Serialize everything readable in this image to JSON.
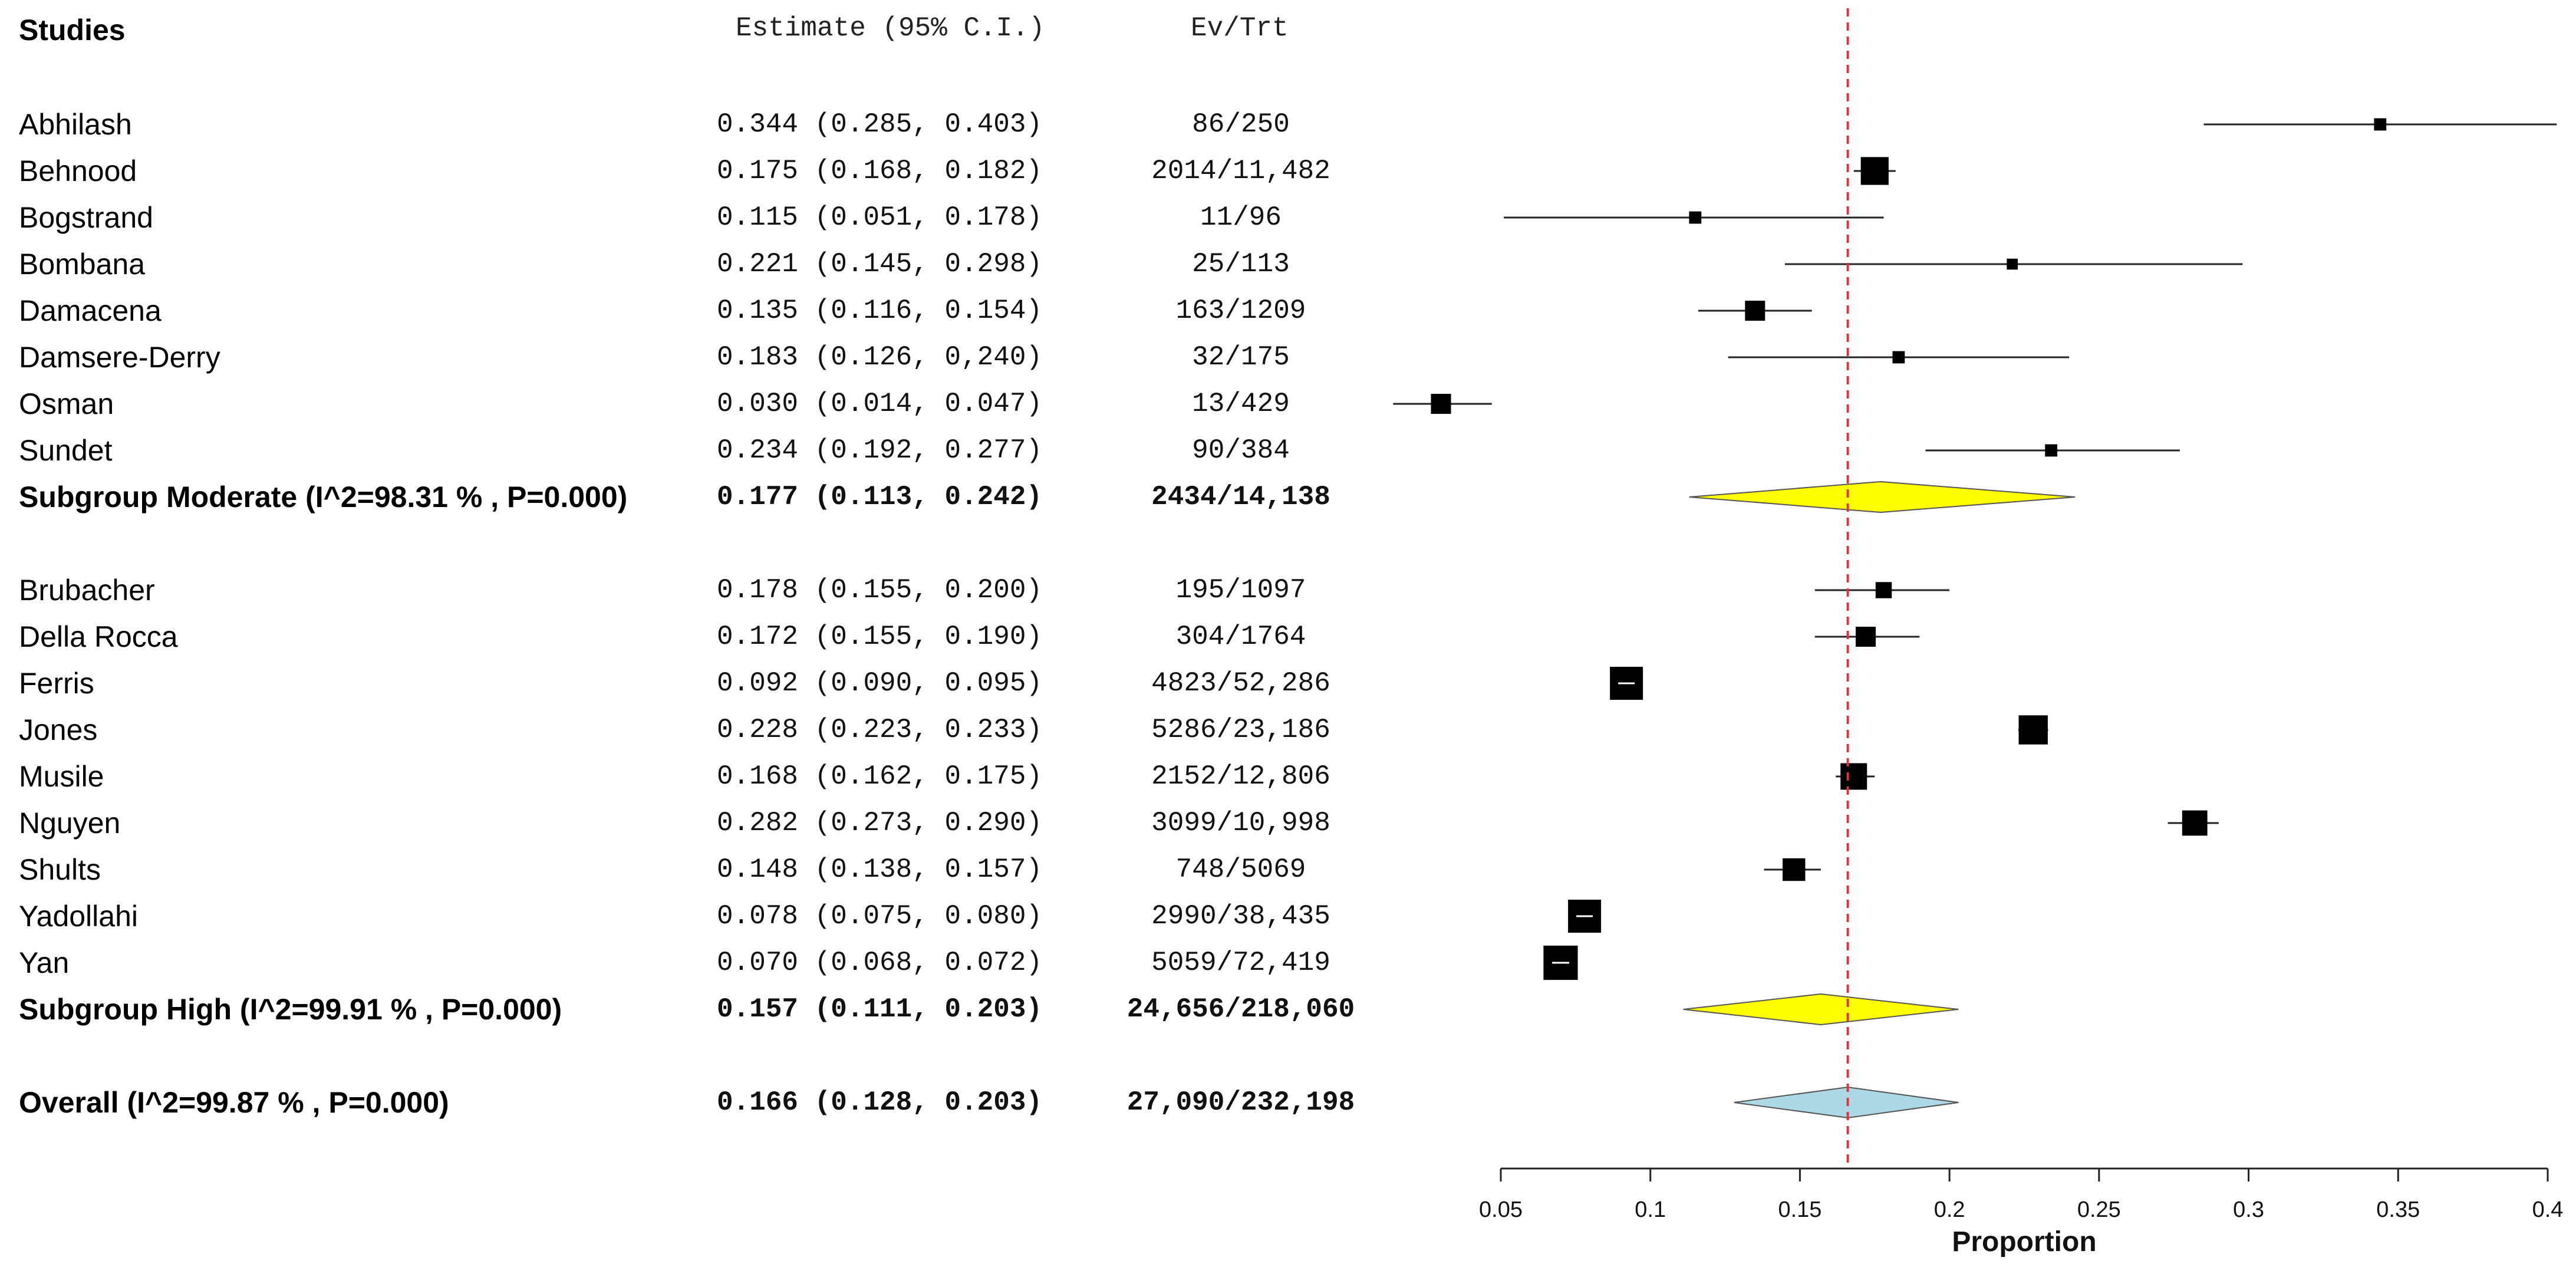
{
  "chart_data": {
    "type": "forest",
    "columns": {
      "studies": "Studies",
      "estimate": "Estimate (95% C.I.)",
      "events": "Ev/Trt"
    },
    "reference_line": 0.166,
    "xlabel": "Proportion",
    "xlim": [
      0.05,
      0.4
    ],
    "xticks": [
      {
        "value": 0.05,
        "label": "0.05"
      },
      {
        "value": 0.1,
        "label": "0.1"
      },
      {
        "value": 0.15,
        "label": "0.15"
      },
      {
        "value": 0.2,
        "label": "0.2"
      },
      {
        "value": 0.25,
        "label": "0.25"
      },
      {
        "value": 0.3,
        "label": "0.3"
      },
      {
        "value": 0.35,
        "label": "0.35"
      },
      {
        "value": 0.4,
        "label": "0.4"
      }
    ],
    "colors": {
      "moderate": "#ffff00",
      "high": "#ffff00",
      "overall": "#add8e6",
      "refline": "#d9363e"
    },
    "rows": [
      {
        "kind": "study",
        "name": "Abhilash",
        "estimate_text": "0.344 (0.285, 0.403)",
        "events": "86/250",
        "est": 0.344,
        "lo": 0.285,
        "hi": 0.403,
        "weight": 0.2
      },
      {
        "kind": "study",
        "name": "Behnood",
        "estimate_text": "0.175 (0.168, 0.182)",
        "events": "2014/11,482",
        "est": 0.175,
        "lo": 0.168,
        "hi": 0.182,
        "weight": 0.8
      },
      {
        "kind": "study",
        "name": "Bogstrand",
        "estimate_text": "0.115 (0.051, 0.178)",
        "events": "11/96",
        "est": 0.115,
        "lo": 0.051,
        "hi": 0.178,
        "weight": 0.2
      },
      {
        "kind": "study",
        "name": "Bombana",
        "estimate_text": "0.221 (0.145, 0.298)",
        "events": "25/113",
        "est": 0.221,
        "lo": 0.145,
        "hi": 0.298,
        "weight": 0.15
      },
      {
        "kind": "study",
        "name": "Damacena",
        "estimate_text": "0.135 (0.116, 0.154)",
        "events": "163/1209",
        "est": 0.135,
        "lo": 0.116,
        "hi": 0.154,
        "weight": 0.5
      },
      {
        "kind": "study",
        "name": "Damsere-Derry",
        "estimate_text": "0.183 (0.126, 0,240)",
        "events": "32/175",
        "est": 0.183,
        "lo": 0.126,
        "hi": 0.24,
        "weight": 0.2
      },
      {
        "kind": "study",
        "name": "Osman",
        "estimate_text": "0.030 (0.014, 0.047)",
        "events": "13/429",
        "est": 0.03,
        "lo": 0.014,
        "hi": 0.047,
        "weight": 0.5
      },
      {
        "kind": "study",
        "name": "Sundet",
        "estimate_text": "0.234 (0.192, 0.277)",
        "events": "90/384",
        "est": 0.234,
        "lo": 0.192,
        "hi": 0.277,
        "weight": 0.2
      },
      {
        "kind": "summary",
        "group": "moderate",
        "name": "Subgroup Moderate (I^2=98.31 % , P=0.000)",
        "estimate_text": "0.177 (0.113, 0.242)",
        "events": "2434/14,138",
        "est": 0.177,
        "lo": 0.113,
        "hi": 0.242
      },
      {
        "kind": "spacer"
      },
      {
        "kind": "study",
        "name": "Brubacher",
        "estimate_text": "0.178 (0.155, 0.200)",
        "events": "195/1097",
        "est": 0.178,
        "lo": 0.155,
        "hi": 0.2,
        "weight": 0.35
      },
      {
        "kind": "study",
        "name": "Della Rocca",
        "estimate_text": "0.172 (0.155, 0.190)",
        "events": "304/1764",
        "est": 0.172,
        "lo": 0.155,
        "hi": 0.19,
        "weight": 0.5
      },
      {
        "kind": "study",
        "name": "Ferris",
        "estimate_text": "0.092 (0.090, 0.095)",
        "events": "4823/52,286",
        "est": 0.092,
        "lo": 0.09,
        "hi": 0.095,
        "weight": 1.0
      },
      {
        "kind": "study",
        "name": "Jones",
        "estimate_text": "0.228 (0.223, 0.233)",
        "events": "5286/23,186",
        "est": 0.228,
        "lo": 0.223,
        "hi": 0.233,
        "weight": 0.85
      },
      {
        "kind": "study",
        "name": "Musile",
        "estimate_text": "0.168 (0.162, 0.175)",
        "events": "2152/12,806",
        "est": 0.168,
        "lo": 0.162,
        "hi": 0.175,
        "weight": 0.75
      },
      {
        "kind": "study",
        "name": "Nguyen",
        "estimate_text": "0.282 (0.273, 0.290)",
        "events": "3099/10,998",
        "est": 0.282,
        "lo": 0.273,
        "hi": 0.29,
        "weight": 0.7
      },
      {
        "kind": "study",
        "name": "Shults",
        "estimate_text": "0.148 (0.138, 0.157)",
        "events": "748/5069",
        "est": 0.148,
        "lo": 0.138,
        "hi": 0.157,
        "weight": 0.6
      },
      {
        "kind": "study",
        "name": "Yadollahi",
        "estimate_text": "0.078 (0.075, 0.080)",
        "events": "2990/38,435",
        "est": 0.078,
        "lo": 0.075,
        "hi": 0.08,
        "weight": 1.0
      },
      {
        "kind": "study",
        "name": "Yan",
        "estimate_text": "0.070 (0.068, 0.072)",
        "events": "5059/72,419",
        "est": 0.07,
        "lo": 0.068,
        "hi": 0.072,
        "weight": 1.05
      },
      {
        "kind": "summary",
        "group": "high",
        "name": "Subgroup High (I^2=99.91 % , P=0.000)",
        "estimate_text": "0.157 (0.111, 0.203)",
        "events": "24,656/218,060",
        "est": 0.157,
        "lo": 0.111,
        "hi": 0.203
      },
      {
        "kind": "spacer"
      },
      {
        "kind": "summary",
        "group": "overall",
        "name": "Overall (I^2=99.87 % , P=0.000)",
        "estimate_text": "0.166 (0.128, 0.203)",
        "events": "27,090/232,198",
        "est": 0.166,
        "lo": 0.128,
        "hi": 0.203
      }
    ]
  }
}
